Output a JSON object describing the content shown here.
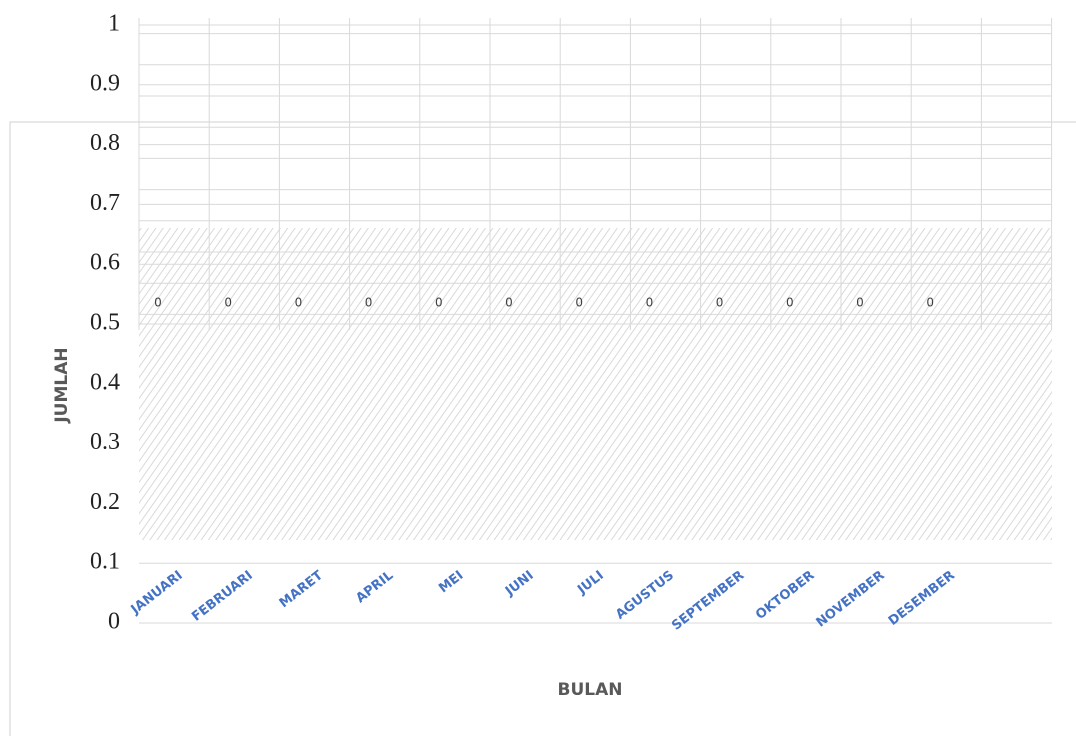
{
  "chart_data": {
    "type": "bar",
    "categories": [
      "JANUARI",
      "FEBRUARI",
      "MARET",
      "APRIL",
      "MEI",
      "JUNI",
      "JULI",
      "AGUSTUS",
      "SEPTEMBER",
      "OKTOBER",
      "NOVEMBER",
      "DESEMBER"
    ],
    "values": [
      0,
      0,
      0,
      0,
      0,
      0,
      0,
      0,
      0,
      0,
      0,
      0
    ],
    "color": "#4472c4",
    "x_label": "BULAN",
    "y_label": "JUMLAH",
    "ylim": [
      0,
      1
    ],
    "yticks": [
      0,
      0.1,
      0.2,
      0.3,
      0.4,
      0.5,
      0.6,
      0.7,
      0.8,
      0.9,
      1
    ],
    "grid": true
  }
}
